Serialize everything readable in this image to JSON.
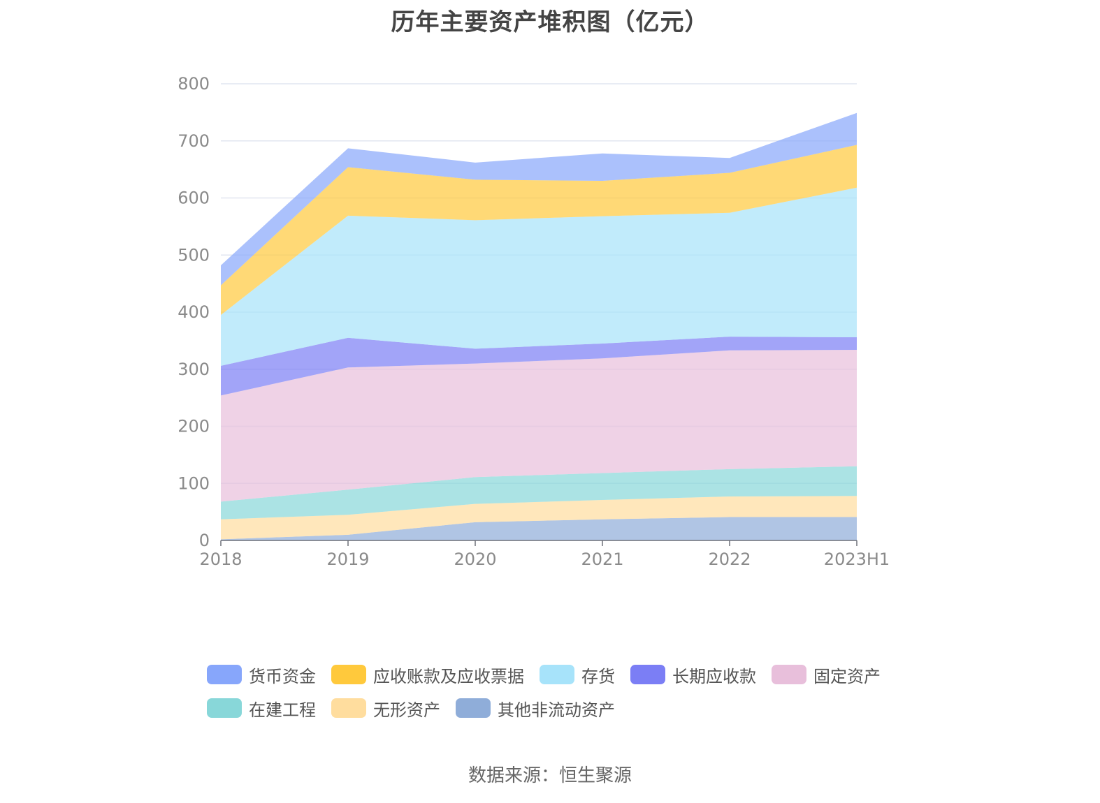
{
  "chart_data": {
    "type": "area",
    "stacked": true,
    "title": "历年主要资产堆积图（亿元）",
    "categories": [
      "2018",
      "2019",
      "2020",
      "2021",
      "2022",
      "2023H1"
    ],
    "ylim": [
      0,
      800
    ],
    "yticks": [
      0,
      100,
      200,
      300,
      400,
      500,
      600,
      700,
      800
    ],
    "grid": true,
    "legend_position": "bottom",
    "series": [
      {
        "name": "其他非流动资产",
        "color": "#8fadd9",
        "values": [
          2,
          10,
          32,
          37,
          41,
          41
        ]
      },
      {
        "name": "无形资产",
        "color": "#ffdd9e",
        "values": [
          35,
          35,
          32,
          34,
          36,
          37
        ]
      },
      {
        "name": "在建工程",
        "color": "#88d7d9",
        "values": [
          31,
          44,
          47,
          47,
          48,
          52
        ]
      },
      {
        "name": "固定资产",
        "color": "#e8bfdb",
        "values": [
          186,
          214,
          199,
          201,
          208,
          204
        ]
      },
      {
        "name": "长期应收款",
        "color": "#7b7ef5",
        "values": [
          52,
          52,
          26,
          26,
          24,
          22
        ]
      },
      {
        "name": "存货",
        "color": "#a7e3fa",
        "values": [
          89,
          214,
          225,
          223,
          217,
          262
        ]
      },
      {
        "name": "应收账款及应收票据",
        "color": "#ffc93c",
        "values": [
          52,
          85,
          71,
          62,
          70,
          75
        ]
      },
      {
        "name": "货币资金",
        "color": "#87a6fb",
        "values": [
          35,
          33,
          30,
          48,
          26,
          56
        ]
      }
    ],
    "legend_order": [
      "货币资金",
      "应收账款及应收票据",
      "存货",
      "长期应收款",
      "固定资产",
      "在建工程",
      "无形资产",
      "其他非流动资产"
    ]
  },
  "source_text": "数据来源：恒生聚源"
}
